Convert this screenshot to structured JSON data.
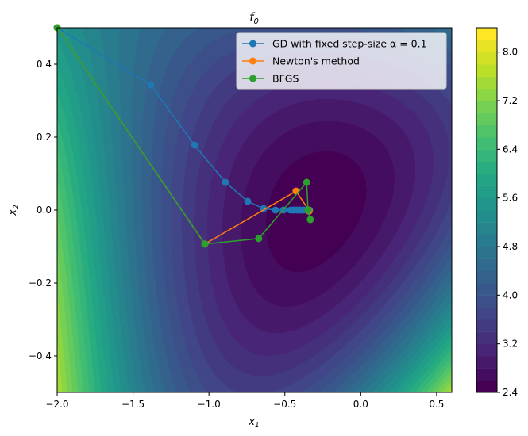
{
  "chart_data": {
    "type": "contour",
    "title": "f_0",
    "xlabel": "x_1",
    "ylabel": "x_2",
    "xlim": [
      -2.0,
      0.6
    ],
    "ylim": [
      -0.5,
      0.5
    ],
    "xticks": [
      "−2.0",
      "−1.5",
      "−1.0",
      "−0.5",
      "0.0",
      "0.5"
    ],
    "xtick_values": [
      -2.0,
      -1.5,
      -1.0,
      -0.5,
      0.0,
      0.5
    ],
    "yticks": [
      "−0.4",
      "−0.2",
      "0.0",
      "0.2",
      "0.4"
    ],
    "ytick_values": [
      -0.4,
      -0.2,
      0.0,
      0.2,
      0.4
    ],
    "colormap": "viridis",
    "levels": {
      "min": 2.4,
      "max": 8.4,
      "step": 0.2
    },
    "colorbar_ticks": [
      "2.4",
      "3.2",
      "4.0",
      "4.8",
      "5.6",
      "6.4",
      "7.2",
      "8.0"
    ],
    "colorbar_tick_values": [
      2.4,
      3.2,
      4.0,
      4.8,
      5.6,
      6.4,
      7.2,
      8.0
    ],
    "legend_placement": "top-right",
    "series": [
      {
        "name": "GD with fixed step-size α = 0.1",
        "color": "#1f77b4",
        "points": [
          [
            -2.0,
            0.5
          ],
          [
            -1.383,
            0.343
          ],
          [
            -1.095,
            0.178
          ],
          [
            -0.891,
            0.076
          ],
          [
            -0.745,
            0.024
          ],
          [
            -0.64,
            0.004
          ],
          [
            -0.562,
            0.0
          ],
          [
            -0.509,
            0.0
          ],
          [
            -0.462,
            0.0
          ],
          [
            -0.441,
            0.0
          ],
          [
            -0.42,
            0.0
          ],
          [
            -0.399,
            0.0
          ],
          [
            -0.378,
            0.0
          ],
          [
            -0.357,
            0.0
          ],
          [
            -0.337,
            0.0
          ]
        ]
      },
      {
        "name": "Newton's method",
        "color": "#ff7f0e",
        "points": [
          [
            -2.0,
            0.5
          ],
          [
            -1.027,
            -0.093
          ],
          [
            -0.426,
            0.052
          ],
          [
            -0.342,
            0.0
          ],
          [
            -0.34,
            -0.003
          ]
        ]
      },
      {
        "name": "BFGS",
        "color": "#2ca02c",
        "points": [
          [
            -2.0,
            0.5
          ],
          [
            -1.027,
            -0.093
          ],
          [
            -0.672,
            -0.078
          ],
          [
            -0.356,
            0.076
          ],
          [
            -0.347,
            0.0
          ],
          [
            -0.332,
            -0.026
          ],
          [
            -0.345,
            0.0
          ]
        ]
      }
    ]
  }
}
